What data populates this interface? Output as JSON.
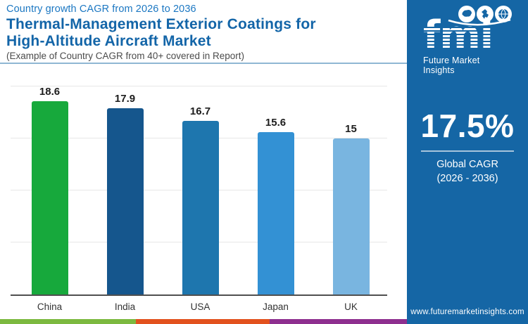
{
  "header": {
    "eyebrow": "Country growth CAGR from 2026 to 2036",
    "title_line1": "Thermal-Management Exterior Coatings for",
    "title_line2": "High-Altitude Aircraft Market",
    "subtitle": "(Example of Country CAGR from 40+ covered in Report)"
  },
  "chart_data": {
    "type": "bar",
    "title": "Country growth CAGR from 2026 to 2036",
    "categories": [
      "China",
      "India",
      "USA",
      "Japan",
      "UK"
    ],
    "values": [
      18.6,
      17.9,
      16.7,
      15.6,
      15
    ],
    "value_labels": [
      "18.6",
      "17.9",
      "16.7",
      "15.6",
      "15"
    ],
    "bar_colors": [
      "#17a93c",
      "#15568d",
      "#1e76ae",
      "#3391d4",
      "#79b5e0"
    ],
    "xlabel": "",
    "ylabel": "",
    "ylim": [
      0,
      20
    ],
    "gridline_values": [
      5,
      10,
      15,
      20
    ],
    "grid": "horizontal, light gray",
    "legend": "none",
    "value_label_position": "above bars"
  },
  "sidebar": {
    "bg_color": "#1566a5",
    "logo": {
      "text": "fmi",
      "tagline": "Future Market Insights",
      "icons": [
        "americas-map-icon",
        "asia-map-icon",
        "globe-icon"
      ]
    },
    "stat": {
      "value": "17.5%",
      "line1": "Global CAGR",
      "line2": "(2026 - 2036)"
    },
    "website": "www.futuremarketinsights.com"
  },
  "footer_stripe": {
    "colors": [
      "#7cb93f",
      "#e2511e",
      "#8e2f8f"
    ]
  },
  "colors": {
    "eyebrow_blue": "#1b77c2",
    "title_blue": "#1365a8",
    "header_rule": "#8fb7d3",
    "axis_line": "#4f4f4f",
    "gridline": "#e7e7e7",
    "value_label": "#1d1d1d"
  }
}
